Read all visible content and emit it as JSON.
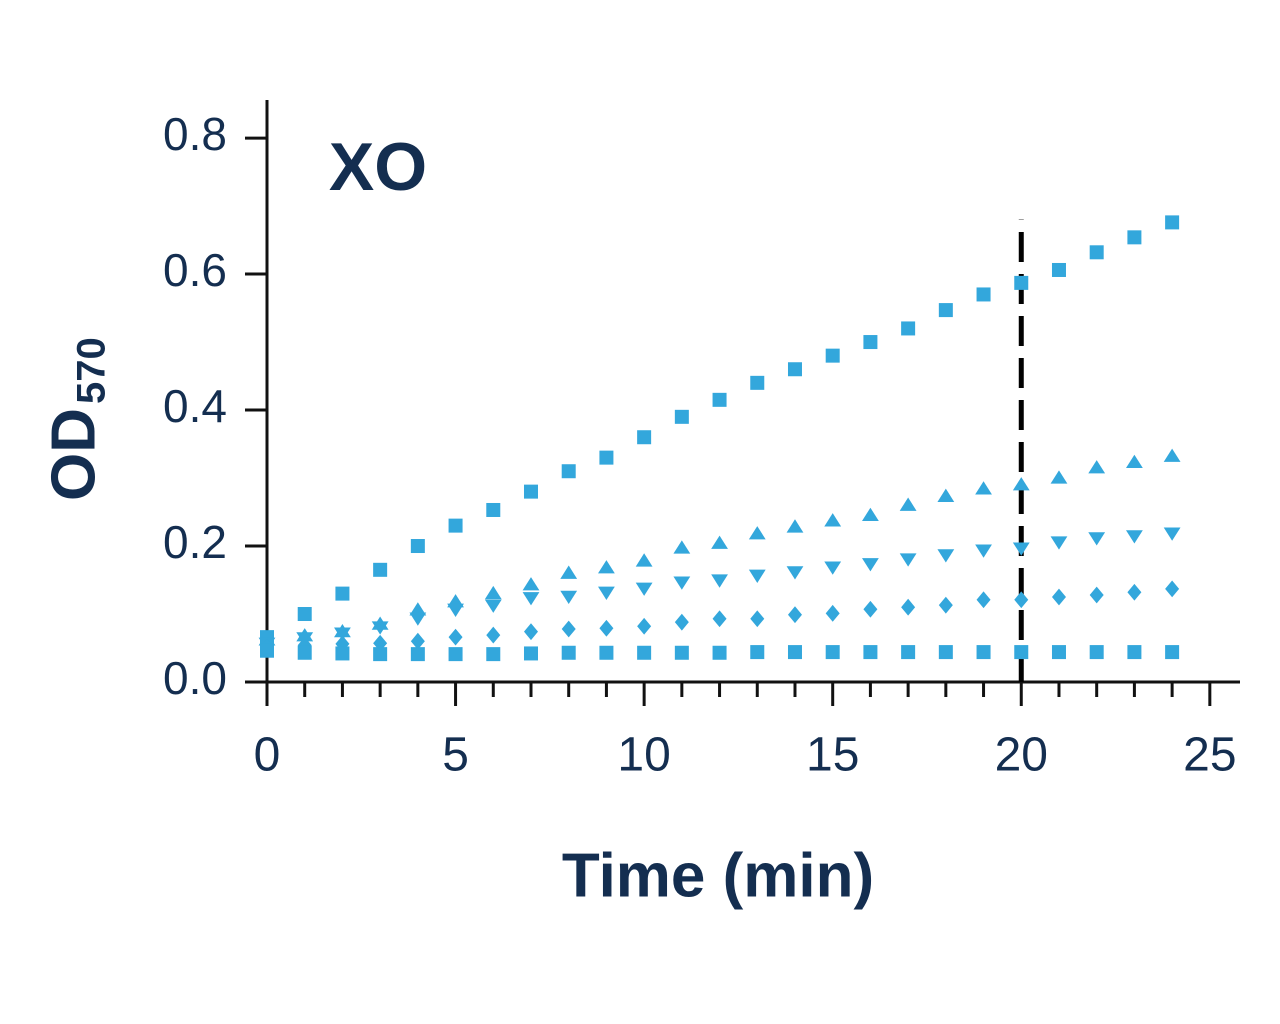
{
  "chart_data": {
    "type": "scatter",
    "title": "XO",
    "xlabel": "Time (min)",
    "ylabel": "OD",
    "ylabel_subscript": "570",
    "xlim": [
      0,
      25.8
    ],
    "ylim": [
      0,
      0.856
    ],
    "xticks": [
      0,
      5,
      10,
      15,
      20,
      25
    ],
    "xminor_ticks": [
      1,
      2,
      3,
      4,
      6,
      7,
      8,
      9,
      11,
      12,
      13,
      14,
      16,
      17,
      18,
      19,
      21,
      22,
      23,
      24
    ],
    "yticks": [
      {
        "value": 0,
        "label": "0.0"
      },
      0.2,
      0.4,
      0.6,
      0.8
    ],
    "reference_line": {
      "x": 20,
      "ylim": [
        0,
        0.68
      ],
      "color": "#000000",
      "style": "dashed"
    },
    "x": [
      0,
      1,
      2,
      3,
      4,
      5,
      6,
      7,
      8,
      9,
      10,
      11,
      12,
      13,
      14,
      15,
      16,
      17,
      18,
      19,
      20,
      21,
      22,
      23,
      24
    ],
    "series": [
      {
        "marker": "square",
        "color": "#33a7dc",
        "values": [
          0.066,
          0.1,
          0.13,
          0.165,
          0.2,
          0.23,
          0.253,
          0.28,
          0.31,
          0.33,
          0.36,
          0.39,
          0.415,
          0.44,
          0.46,
          0.48,
          0.5,
          0.52,
          0.547,
          0.57,
          0.587,
          0.606,
          0.632,
          0.654,
          0.676
        ]
      },
      {
        "marker": "triangle-up",
        "color": "#33a7dc",
        "values": [
          0.062,
          0.068,
          0.074,
          0.085,
          0.106,
          0.118,
          0.13,
          0.143,
          0.16,
          0.168,
          0.178,
          0.197,
          0.204,
          0.218,
          0.228,
          0.237,
          0.245,
          0.26,
          0.273,
          0.284,
          0.29,
          0.3,
          0.315,
          0.323,
          0.332
        ]
      },
      {
        "marker": "triangle-down",
        "color": "#33a7dc",
        "values": [
          0.057,
          0.065,
          0.072,
          0.081,
          0.094,
          0.107,
          0.113,
          0.124,
          0.126,
          0.132,
          0.138,
          0.147,
          0.15,
          0.157,
          0.162,
          0.169,
          0.174,
          0.181,
          0.187,
          0.194,
          0.197,
          0.206,
          0.212,
          0.215,
          0.219
        ]
      },
      {
        "marker": "diamond",
        "color": "#33a7dc",
        "values": [
          0.051,
          0.054,
          0.056,
          0.057,
          0.06,
          0.066,
          0.069,
          0.074,
          0.078,
          0.079,
          0.082,
          0.088,
          0.093,
          0.093,
          0.099,
          0.101,
          0.107,
          0.11,
          0.113,
          0.121,
          0.121,
          0.125,
          0.128,
          0.132,
          0.137
        ]
      },
      {
        "marker": "square",
        "color": "#33a7dc",
        "values": [
          0.046,
          0.043,
          0.042,
          0.041,
          0.041,
          0.041,
          0.041,
          0.042,
          0.043,
          0.043,
          0.043,
          0.043,
          0.043,
          0.044,
          0.044,
          0.044,
          0.044,
          0.044,
          0.044,
          0.044,
          0.044,
          0.044,
          0.044,
          0.044,
          0.044
        ]
      }
    ]
  }
}
